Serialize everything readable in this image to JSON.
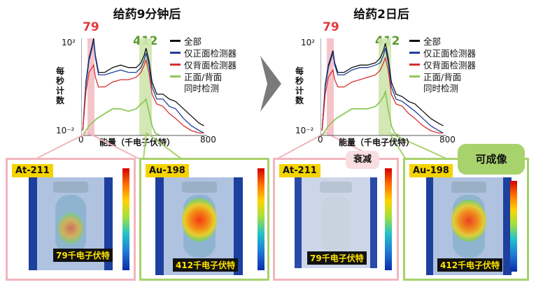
{
  "left": {
    "title": "给药9分钟后",
    "peak_low": "79",
    "peak_high": "412",
    "tumor_label": "",
    "panels": [
      {
        "isotope": "At-211",
        "energy": "79千电子伏特",
        "level": 0.55
      },
      {
        "isotope": "Au-198",
        "energy": "412千电子伏特",
        "level": 0.9
      }
    ]
  },
  "right": {
    "title": "给药2日后",
    "peak_low": "79",
    "peak_high": "412",
    "attenuation_label": "衰减",
    "imaging_label": "可成像",
    "panels": [
      {
        "isotope": "At-211",
        "energy": "79千电子伏特",
        "level": 0.05
      },
      {
        "isotope": "Au-198",
        "energy": "412千电子伏特",
        "level": 0.85
      }
    ]
  },
  "legend": [
    "全部",
    "仅正面检测器",
    "仅背面检测器",
    "正面/背面",
    "同时检测"
  ],
  "ylabel": "每秒计数",
  "xlabel": "能量（千电子伏特）",
  "ytick_top": "10²",
  "ytick_bottom": "10⁻²",
  "xtick_left": "0",
  "xtick_right": "800",
  "colors": {
    "all": "#111111",
    "front": "#1f3f9a",
    "back": "#d62f2f",
    "coincidence": "#8fc85a",
    "peak79": "#f2b5bd",
    "peak412": "#cfe6ae"
  },
  "chart_data": [
    {
      "type": "line",
      "title": "给药9分钟后",
      "xlabel": "能量（千电子伏特）",
      "ylabel": "每秒计数",
      "xlim": [
        0,
        800
      ],
      "ylim_log10": [
        -2,
        2
      ],
      "series": [
        {
          "name": "全部",
          "x": [
            10,
            30,
            50,
            70,
            79,
            90,
            110,
            150,
            200,
            250,
            300,
            350,
            380,
            400,
            412,
            430,
            450,
            480,
            520,
            560,
            600,
            650,
            700,
            750,
            780
          ],
          "y_log10": [
            -1.8,
            0.2,
            1.2,
            1.7,
            2.0,
            1.3,
            0.6,
            0.6,
            0.8,
            0.9,
            0.8,
            0.8,
            1.0,
            1.3,
            1.6,
            1.1,
            0.2,
            -0.3,
            -0.3,
            -0.5,
            -0.6,
            -0.9,
            -1.2,
            -1.5,
            -1.6
          ]
        },
        {
          "name": "仅正面检测器",
          "x": [
            10,
            30,
            50,
            70,
            79,
            90,
            110,
            150,
            200,
            250,
            300,
            350,
            380,
            400,
            412,
            430,
            450,
            480,
            520,
            560,
            600,
            650,
            700,
            750,
            780
          ],
          "y_log10": [
            -1.8,
            0.1,
            1.1,
            1.6,
            1.9,
            1.2,
            0.5,
            0.5,
            0.6,
            0.7,
            0.6,
            0.6,
            0.8,
            1.1,
            1.4,
            0.9,
            0.0,
            -0.5,
            -0.5,
            -0.8,
            -0.9,
            -1.3,
            -1.6,
            -1.8,
            -1.9
          ]
        },
        {
          "name": "仅背面检测器",
          "x": [
            10,
            30,
            50,
            70,
            79,
            90,
            110,
            150,
            200,
            250,
            300,
            350,
            380,
            400,
            412,
            430,
            450,
            480,
            520,
            560,
            600,
            650,
            700,
            750,
            780
          ],
          "y_log10": [
            -1.8,
            -0.2,
            0.6,
            0.8,
            0.9,
            0.4,
            0.0,
            0.0,
            0.2,
            0.3,
            0.3,
            0.4,
            0.6,
            0.9,
            1.1,
            0.6,
            -0.3,
            -0.7,
            -0.8,
            -1.1,
            -1.3,
            -1.6,
            -1.8,
            -1.9,
            -1.9
          ]
        },
        {
          "name": "正面/背面同时检测",
          "x": [
            10,
            50,
            100,
            150,
            200,
            250,
            300,
            350,
            380,
            400,
            412,
            430,
            450,
            470,
            500
          ],
          "y_log10": [
            -2,
            -1.6,
            -1.3,
            -1.1,
            -0.9,
            -0.9,
            -1.0,
            -0.9,
            -0.7,
            -0.6,
            -0.5,
            -1.0,
            -1.6,
            -1.9,
            -2
          ]
        }
      ]
    },
    {
      "type": "line",
      "title": "给药2日后",
      "xlabel": "能量（千电子伏特）",
      "ylabel": "每秒计数",
      "xlim": [
        0,
        800
      ],
      "ylim_log10": [
        -2,
        2
      ],
      "series": [
        {
          "name": "全部",
          "x": [
            10,
            30,
            50,
            70,
            79,
            90,
            110,
            150,
            200,
            250,
            300,
            350,
            380,
            400,
            412,
            430,
            450,
            480,
            520,
            560,
            600,
            650,
            700,
            750,
            780
          ],
          "y_log10": [
            -1.8,
            0.1,
            0.9,
            1.3,
            1.5,
            1.0,
            0.6,
            0.6,
            0.8,
            0.9,
            0.9,
            1.0,
            1.2,
            1.5,
            1.8,
            1.2,
            0.2,
            -0.3,
            -0.4,
            -0.6,
            -0.7,
            -1.0,
            -1.3,
            -1.5,
            -1.6
          ]
        },
        {
          "name": "仅正面检测器",
          "x": [
            10,
            30,
            50,
            70,
            79,
            90,
            110,
            150,
            200,
            250,
            300,
            350,
            380,
            400,
            412,
            430,
            450,
            480,
            520,
            560,
            600,
            650,
            700,
            750,
            780
          ],
          "y_log10": [
            -1.8,
            0.0,
            0.8,
            1.2,
            1.4,
            0.9,
            0.5,
            0.5,
            0.7,
            0.8,
            0.8,
            0.9,
            1.0,
            1.3,
            1.6,
            1.0,
            0.0,
            -0.5,
            -0.6,
            -0.8,
            -1.0,
            -1.3,
            -1.6,
            -1.8,
            -1.9
          ]
        },
        {
          "name": "仅背面检测器",
          "x": [
            10,
            30,
            50,
            70,
            79,
            90,
            110,
            150,
            200,
            250,
            300,
            350,
            380,
            400,
            412,
            430,
            450,
            480,
            520,
            560,
            600,
            650,
            700,
            750,
            780
          ],
          "y_log10": [
            -1.8,
            -0.3,
            0.4,
            0.6,
            0.7,
            0.3,
            0.0,
            0.0,
            0.2,
            0.3,
            0.4,
            0.5,
            0.7,
            1.0,
            1.2,
            0.7,
            -0.3,
            -0.7,
            -0.8,
            -1.1,
            -1.3,
            -1.6,
            -1.8,
            -1.9,
            -1.9
          ]
        },
        {
          "name": "正面/背面同时检测",
          "x": [
            10,
            50,
            100,
            150,
            200,
            250,
            300,
            350,
            380,
            400,
            412,
            430,
            450,
            470,
            500
          ],
          "y_log10": [
            -2,
            -1.6,
            -1.3,
            -1.1,
            -0.9,
            -0.9,
            -0.9,
            -0.8,
            -0.6,
            -0.4,
            -0.2,
            -0.9,
            -1.6,
            -1.9,
            -2
          ]
        }
      ]
    }
  ]
}
